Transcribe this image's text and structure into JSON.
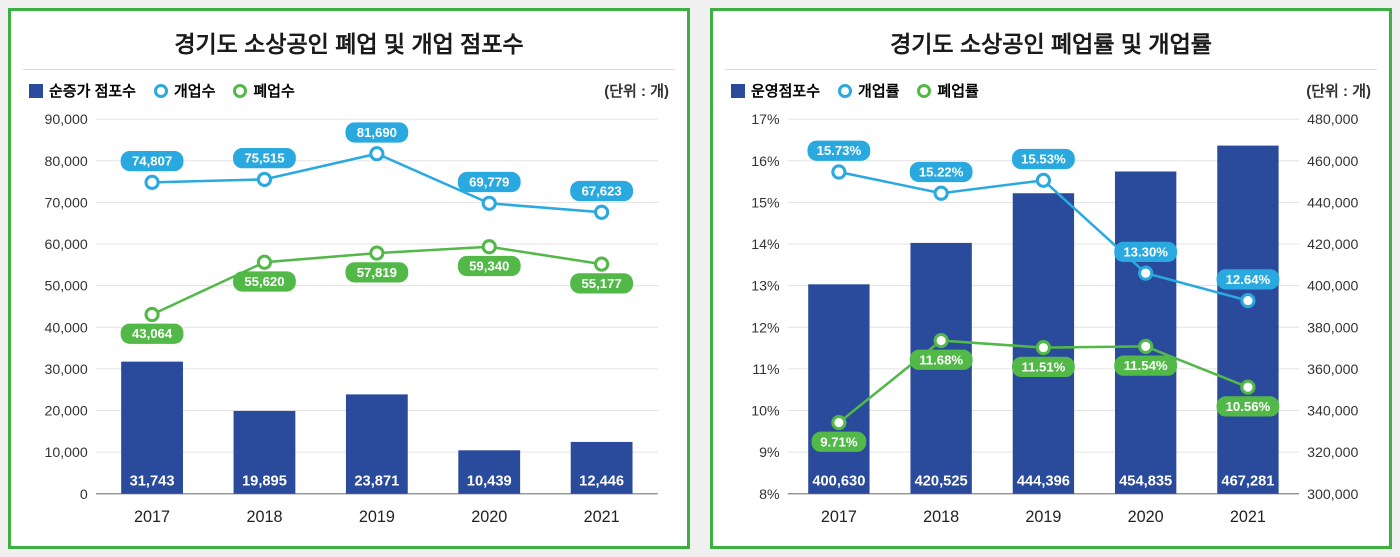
{
  "border_color": "#3cb043",
  "left": {
    "title": "경기도 소상공인 폐업 및 개업 점포수",
    "unit": "(단위 : 개)",
    "legend": {
      "bar": {
        "label": "순증가 점포수",
        "color": "#2a4b9b"
      },
      "line1": {
        "label": "개업수",
        "color": "#2aa9e0"
      },
      "line2": {
        "label": "폐업수",
        "color": "#52b848"
      }
    },
    "categories": [
      "2017",
      "2018",
      "2019",
      "2020",
      "2021"
    ],
    "yaxis": {
      "min": 0,
      "max": 90000,
      "step": 10000
    },
    "bars": [
      31743,
      19895,
      23871,
      10439,
      12446
    ],
    "line1": [
      74807,
      75515,
      81690,
      69779,
      67623
    ],
    "line2": [
      43064,
      55620,
      57819,
      59340,
      55177
    ],
    "line1_labels": [
      "74,807",
      "75,515",
      "81,690",
      "69,779",
      "67,623"
    ],
    "line2_labels": [
      "43,064",
      "55,620",
      "57,819",
      "59,340",
      "55,177"
    ],
    "bar_labels": [
      "31,743",
      "19,895",
      "23,871",
      "10,439",
      "12,446"
    ],
    "styling": {
      "background": "#ffffff",
      "grid_color": "#e3e3e3",
      "bar_width": 0.55,
      "line_width": 2.5,
      "marker_radius": 6,
      "pill_fill_line1": "#2aa9e0",
      "pill_fill_line2": "#52b848"
    }
  },
  "right": {
    "title": "경기도 소상공인 폐업률 및 개업률",
    "unit": "(단위 : 개)",
    "legend": {
      "bar": {
        "label": "운영점포수",
        "color": "#2a4b9b"
      },
      "line1": {
        "label": "개업률",
        "color": "#2aa9e0"
      },
      "line2": {
        "label": "폐업률",
        "color": "#52b848"
      }
    },
    "categories": [
      "2017",
      "2018",
      "2019",
      "2020",
      "2021"
    ],
    "yaxis_left": {
      "min": 8,
      "max": 17,
      "step": 1,
      "suffix": "%"
    },
    "yaxis_right": {
      "min": 300000,
      "max": 480000,
      "step": 20000
    },
    "bars": [
      400630,
      420525,
      444396,
      454835,
      467281
    ],
    "line1": [
      15.73,
      15.22,
      15.53,
      13.3,
      12.64
    ],
    "line2": [
      9.71,
      11.68,
      11.51,
      11.54,
      10.56
    ],
    "line1_labels": [
      "15.73%",
      "15.22%",
      "15.53%",
      "13.30%",
      "12.64%"
    ],
    "line2_labels": [
      "9.71%",
      "11.68%",
      "11.51%",
      "11.54%",
      "10.56%"
    ],
    "bar_labels": [
      "400,630",
      "420,525",
      "444,396",
      "454,835",
      "467,281"
    ],
    "styling": {
      "background": "#ffffff",
      "grid_color": "#e3e3e3",
      "bar_width": 0.6,
      "line_width": 2.5,
      "marker_radius": 6,
      "pill_fill_line1": "#2aa9e0",
      "pill_fill_line2": "#52b848"
    }
  }
}
